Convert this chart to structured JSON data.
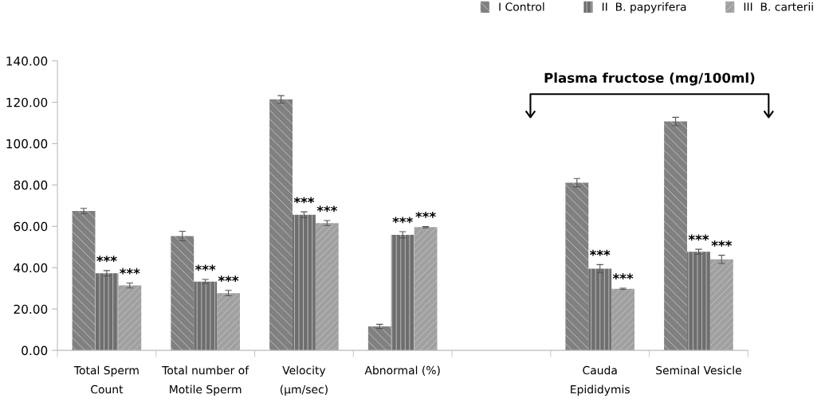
{
  "chart_data": {
    "type": "bar",
    "categories": [
      "Total Sperm Count",
      "Total number of Motile Sperm",
      "Velocity (µm/sec)",
      "Abnormal (%)",
      null,
      "Cauda Epididymis",
      "Seminal Vesicle"
    ],
    "series": [
      {
        "name": "I Control",
        "color": "#808080",
        "values": [
          67.4,
          55.3,
          121.4,
          11.6,
          null,
          81.1,
          110.7
        ],
        "errors": [
          1.3,
          2.3,
          1.8,
          1.0,
          null,
          2.0,
          2.0
        ]
      },
      {
        "name": "II  B. papyrifera",
        "color": "#6e6e6e",
        "values": [
          37.3,
          33.3,
          65.6,
          55.9,
          null,
          39.5,
          47.7
        ],
        "errors": [
          1.3,
          1.0,
          1.4,
          1.5,
          null,
          2.0,
          1.2
        ],
        "value_labels": [
          "***",
          "***",
          "***",
          "***",
          null,
          "***",
          "***"
        ]
      },
      {
        "name": "III  B. carterii",
        "color": "#a0a0a0",
        "values": [
          31.4,
          27.7,
          61.6,
          59.6,
          null,
          29.8,
          44.0
        ],
        "errors": [
          1.2,
          1.3,
          1.2,
          0.3,
          null,
          0.3,
          2.0
        ],
        "value_labels": [
          "***",
          "***",
          "***",
          "***",
          null,
          "***",
          "***"
        ]
      }
    ],
    "ylim": [
      0,
      140
    ],
    "yticks": [
      {
        "value": 0,
        "label": "0.00"
      },
      {
        "value": 20,
        "label": "20.00"
      },
      {
        "value": 40,
        "label": "40.00"
      },
      {
        "value": 60,
        "label": "60.00"
      },
      {
        "value": 80,
        "label": "80.00"
      },
      {
        "value": 100,
        "label": "100.00"
      },
      {
        "value": 120,
        "label": "120.00"
      },
      {
        "value": 140,
        "label": "140.00"
      }
    ],
    "grid": false,
    "legend": "top right",
    "annotations": [
      "Plasma fructose (mg/100ml)"
    ]
  }
}
